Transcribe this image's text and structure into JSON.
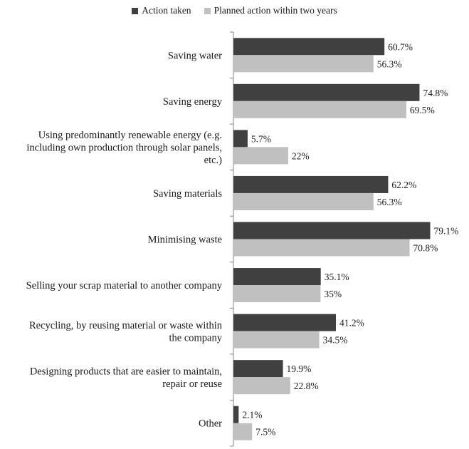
{
  "chart_data": {
    "type": "bar",
    "orientation": "horizontal",
    "categories": [
      [
        "Saving water"
      ],
      [
        "Saving energy"
      ],
      [
        "Using predominantly renewable energy (e.g.",
        "including own production through solar panels,",
        "etc.)"
      ],
      [
        "Saving materials"
      ],
      [
        "Minimising waste"
      ],
      [
        "Selling your scrap material to another company"
      ],
      [
        "Recycling, by reusing material or waste within",
        "the company"
      ],
      [
        "Designing products that are easier to maintain,",
        "repair or reuse"
      ],
      [
        "Other"
      ]
    ],
    "series": [
      {
        "name": "Action taken",
        "color": "#404040",
        "values": [
          60.7,
          74.8,
          5.7,
          62.2,
          79.1,
          35.1,
          41.2,
          19.9,
          2.1
        ],
        "labels": [
          "60.7%",
          "74.8%",
          "5.7%",
          "62.2%",
          "79.1%",
          "35.1%",
          "41.2%",
          "19.9%",
          "2.1%"
        ]
      },
      {
        "name": "Planned action within two years",
        "color": "#c0c0c0",
        "values": [
          56.3,
          69.5,
          22,
          56.3,
          70.8,
          35,
          34.5,
          22.8,
          7.5
        ],
        "labels": [
          "56.3%",
          "69.5%",
          "22%",
          "56.3%",
          "70.8%",
          "35%",
          "34.5%",
          "22.8%",
          "7.5%"
        ]
      }
    ],
    "xlim": [
      0,
      100
    ],
    "grid": false,
    "legend_position": "top"
  }
}
